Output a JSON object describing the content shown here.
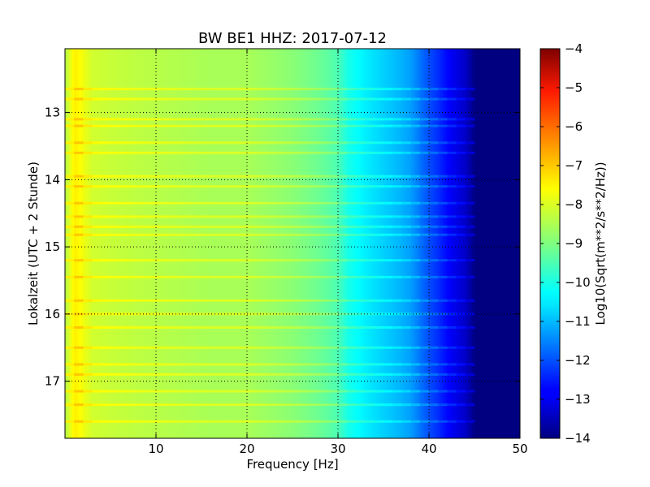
{
  "chart_data": {
    "type": "heatmap",
    "title": "BW BE1 HHZ: 2017-07-12",
    "xlabel": "Frequency [Hz]",
    "ylabel": "Lokalzeit (UTC + 2 Stunde)",
    "xlim": [
      0,
      50
    ],
    "ylim": [
      12.05,
      17.85
    ],
    "x_ticks": [
      10,
      20,
      30,
      40,
      50
    ],
    "y_ticks": [
      13,
      14,
      15,
      16,
      17
    ],
    "y_inverted": true,
    "grid": true,
    "colormap": "jet",
    "colorbar": {
      "label": "Log10(Sqrt(m**2/s**2/Hz))",
      "range": [
        -14,
        -4
      ],
      "ticks": [
        -4,
        -5,
        -6,
        -7,
        -8,
        -9,
        -10,
        -11,
        -12,
        -13,
        -14
      ]
    },
    "frequency_profile": {
      "frequency_hz": [
        0,
        0.5,
        1,
        1.5,
        2,
        3,
        5,
        8,
        12,
        16,
        20,
        25,
        28,
        30,
        31,
        33,
        35,
        37,
        38,
        39,
        40,
        41,
        42,
        43,
        44,
        44.5,
        45,
        46,
        50
      ],
      "log10_amplitude": [
        -8.5,
        -8.1,
        -7.6,
        -7.7,
        -7.9,
        -8.2,
        -8.3,
        -8.4,
        -8.5,
        -8.6,
        -8.6,
        -8.9,
        -9.2,
        -9.5,
        -10.0,
        -10.4,
        -10.7,
        -11.0,
        -11.2,
        -11.6,
        -12.0,
        -12.3,
        -12.7,
        -13.0,
        -13.3,
        -13.6,
        -14.0,
        -14.0,
        -14.0
      ]
    },
    "hour_offset_events": [
      12.65,
      12.8,
      13.1,
      13.2,
      13.45,
      13.6,
      13.95,
      14.1,
      14.35,
      14.55,
      14.7,
      14.82,
      15.2,
      15.45,
      15.8,
      16.0,
      16.2,
      16.5,
      16.75,
      16.9,
      17.15,
      17.35,
      17.6
    ]
  }
}
